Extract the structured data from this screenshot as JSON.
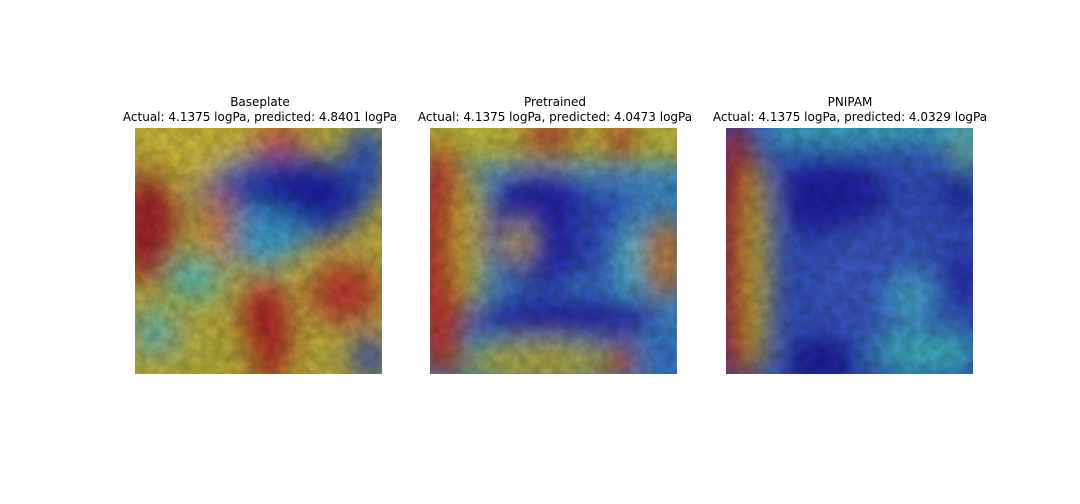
{
  "panels": [
    {
      "title": "Baseplate",
      "subtitle": "Actual: 4.1375 logPa, predicted: 4.8401 logPa"
    },
    {
      "title": "Pretrained",
      "subtitle": "Actual: 4.1375 logPa, predicted: 4.0473 logPa"
    },
    {
      "title": "PNIPAM",
      "subtitle": "Actual: 4.1375 logPa, predicted: 4.0329 logPa"
    }
  ],
  "colormap": {
    "low": "#1a1aa8",
    "mid_low": "#3fa6d8",
    "mid": "#c9c43a",
    "high": "#b8282a"
  }
}
